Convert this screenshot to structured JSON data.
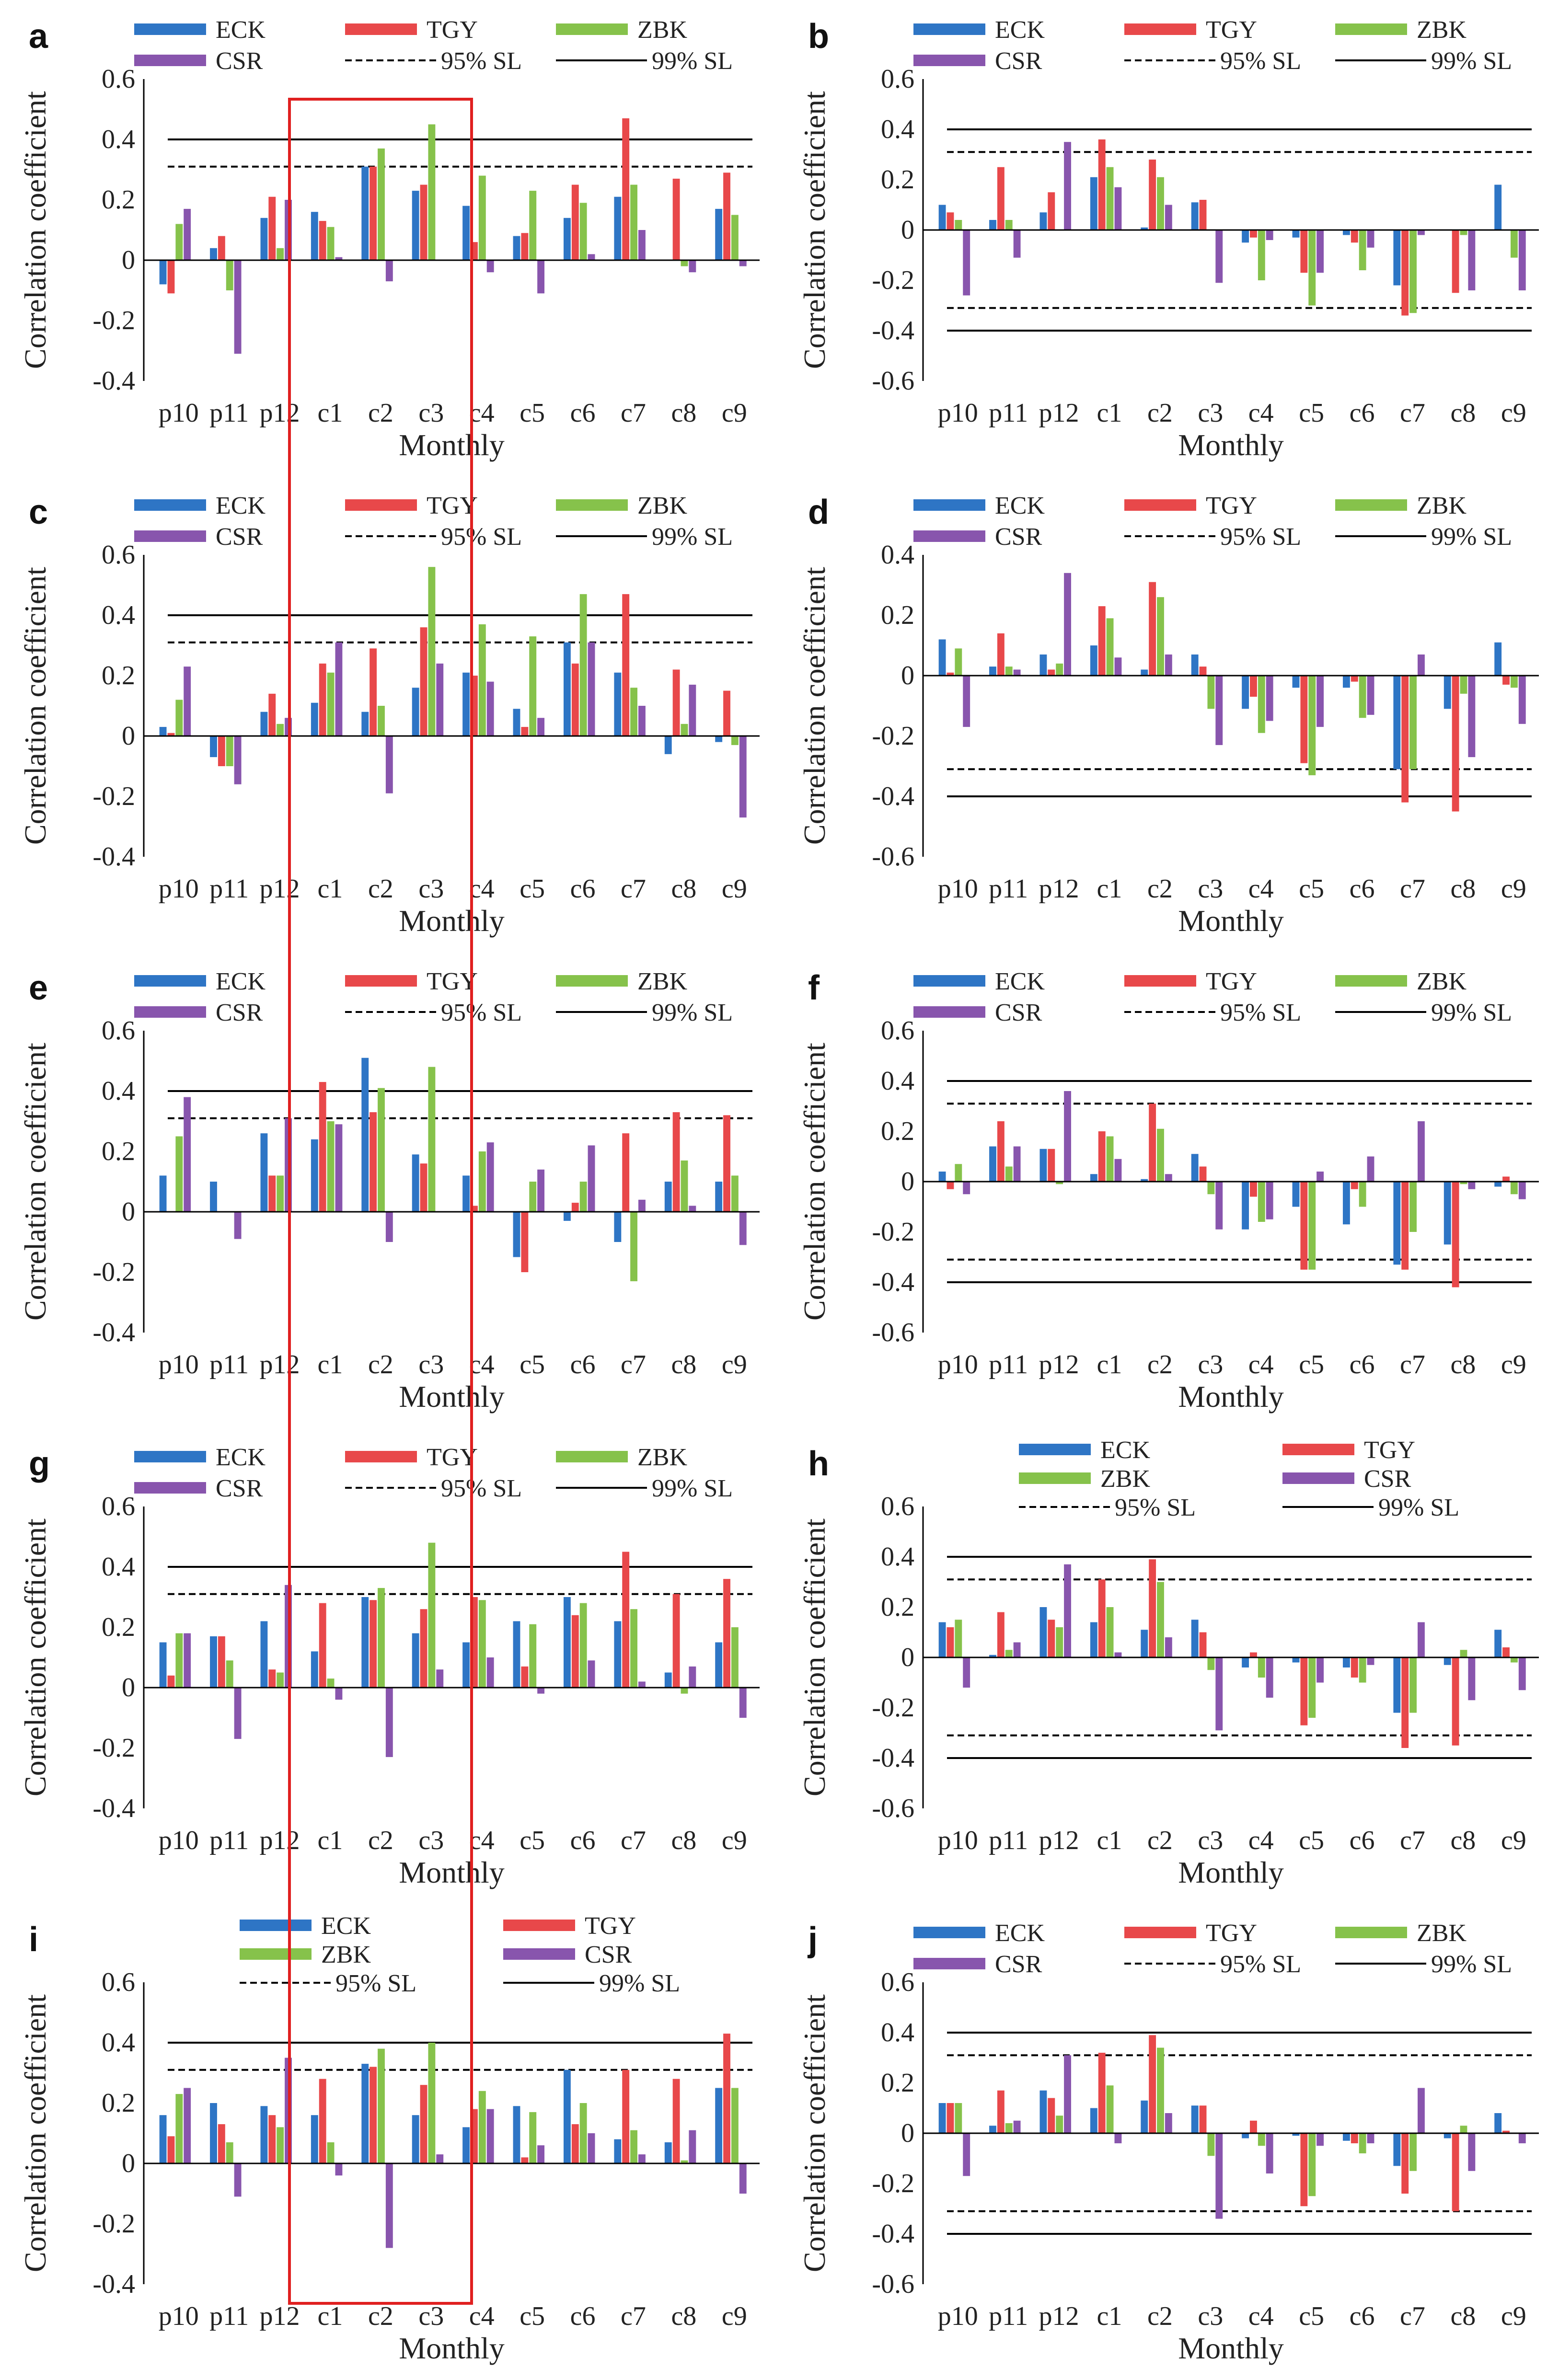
{
  "figure": {
    "colors": {
      "ECK": "#2e75c5",
      "TGY": "#e8484a",
      "ZBK": "#86c24b",
      "CSR": "#8855ad",
      "threshold": "#000000",
      "highlight": "#e02020"
    }
  },
  "chart_data": [
    {
      "panel": "a",
      "type": "bar",
      "ylabel": "Correlation coefficient",
      "xlabel": "Monthly",
      "categories": [
        "p10",
        "p11",
        "p12",
        "c1",
        "c2",
        "c3",
        "c4",
        "c5",
        "c6",
        "c7",
        "c8",
        "c9"
      ],
      "ylim": [
        -0.4,
        0.6
      ],
      "yticks": [
        -0.4,
        -0.2,
        0,
        0.2,
        0.4,
        0.6
      ],
      "legend": [
        "ECK",
        "TGY",
        "ZBK",
        "CSR",
        "95% SL",
        "99% SL"
      ],
      "legend_columns": 3,
      "thresholds": {
        "sl95": 0.31,
        "sl99": 0.4,
        "show_negative": false
      },
      "series": [
        {
          "name": "ECK",
          "values": [
            -0.08,
            0.04,
            0.14,
            0.16,
            0.31,
            0.23,
            0.18,
            0.08,
            0.14,
            0.21,
            0.0,
            0.17
          ]
        },
        {
          "name": "TGY",
          "values": [
            -0.11,
            0.08,
            0.21,
            0.13,
            0.31,
            0.25,
            0.06,
            0.09,
            0.25,
            0.47,
            0.27,
            0.29
          ]
        },
        {
          "name": "ZBK",
          "values": [
            0.12,
            -0.1,
            0.04,
            0.11,
            0.37,
            0.45,
            0.28,
            0.23,
            0.19,
            0.25,
            -0.02,
            0.15
          ]
        },
        {
          "name": "CSR",
          "values": [
            0.17,
            -0.31,
            0.2,
            0.01,
            -0.07,
            0.0,
            -0.04,
            -0.11,
            0.02,
            0.1,
            -0.04,
            -0.02
          ]
        }
      ]
    },
    {
      "panel": "b",
      "type": "bar",
      "ylabel": "Correlation coefficient",
      "xlabel": "Monthly",
      "categories": [
        "p10",
        "p11",
        "p12",
        "c1",
        "c2",
        "c3",
        "c4",
        "c5",
        "c6",
        "c7",
        "c8",
        "c9"
      ],
      "ylim": [
        -0.6,
        0.6
      ],
      "yticks": [
        -0.6,
        -0.4,
        -0.2,
        0,
        0.2,
        0.4,
        0.6
      ],
      "legend": [
        "ECK",
        "TGY",
        "ZBK",
        "CSR",
        "95% SL",
        "99% SL"
      ],
      "legend_columns": 3,
      "thresholds": {
        "sl95": 0.31,
        "sl99": 0.4,
        "show_negative": true
      },
      "series": [
        {
          "name": "ECK",
          "values": [
            0.1,
            0.04,
            0.07,
            0.21,
            0.01,
            0.11,
            -0.05,
            -0.03,
            -0.02,
            -0.22,
            0.0,
            0.18
          ]
        },
        {
          "name": "TGY",
          "values": [
            0.07,
            0.25,
            0.15,
            0.36,
            0.28,
            0.12,
            -0.03,
            -0.17,
            -0.05,
            -0.34,
            -0.25,
            0.0
          ]
        },
        {
          "name": "ZBK",
          "values": [
            0.04,
            0.04,
            0.0,
            0.25,
            0.21,
            0.0,
            -0.2,
            -0.3,
            -0.16,
            -0.33,
            -0.02,
            -0.11
          ]
        },
        {
          "name": "CSR",
          "values": [
            -0.26,
            -0.11,
            0.35,
            0.17,
            0.1,
            -0.21,
            -0.04,
            -0.17,
            -0.07,
            -0.02,
            -0.24,
            -0.24
          ]
        }
      ]
    },
    {
      "panel": "c",
      "type": "bar",
      "ylabel": "Correlation coefficient",
      "xlabel": "Monthly",
      "categories": [
        "p10",
        "p11",
        "p12",
        "c1",
        "c2",
        "c3",
        "c4",
        "c5",
        "c6",
        "c7",
        "c8",
        "c9"
      ],
      "ylim": [
        -0.4,
        0.6
      ],
      "yticks": [
        -0.4,
        -0.2,
        0,
        0.2,
        0.4,
        0.6
      ],
      "legend": [
        "ECK",
        "TGY",
        "ZBK",
        "CSR",
        "95% SL",
        "99% SL"
      ],
      "legend_columns": 3,
      "thresholds": {
        "sl95": 0.31,
        "sl99": 0.4,
        "show_negative": false
      },
      "series": [
        {
          "name": "ECK",
          "values": [
            0.03,
            -0.07,
            0.08,
            0.11,
            0.08,
            0.16,
            0.21,
            0.09,
            0.31,
            0.21,
            -0.06,
            -0.02
          ]
        },
        {
          "name": "TGY",
          "values": [
            0.01,
            -0.1,
            0.14,
            0.24,
            0.29,
            0.36,
            0.2,
            0.03,
            0.24,
            0.47,
            0.22,
            0.15
          ]
        },
        {
          "name": "ZBK",
          "values": [
            0.12,
            -0.1,
            0.04,
            0.21,
            0.1,
            0.56,
            0.37,
            0.33,
            0.47,
            0.16,
            0.04,
            -0.03
          ]
        },
        {
          "name": "CSR",
          "values": [
            0.23,
            -0.16,
            0.06,
            0.31,
            -0.19,
            0.24,
            0.18,
            0.06,
            0.31,
            0.1,
            0.17,
            -0.27
          ]
        }
      ]
    },
    {
      "panel": "d",
      "type": "bar",
      "ylabel": "Correlation coefficient",
      "xlabel": "Monthly",
      "categories": [
        "p10",
        "p11",
        "p12",
        "c1",
        "c2",
        "c3",
        "c4",
        "c5",
        "c6",
        "c7",
        "c8",
        "c9"
      ],
      "ylim": [
        -0.6,
        0.4
      ],
      "yticks": [
        -0.6,
        -0.4,
        -0.2,
        0,
        0.2,
        0.4
      ],
      "legend": [
        "ECK",
        "TGY",
        "ZBK",
        "CSR",
        "95% SL",
        "99% SL"
      ],
      "legend_columns": 3,
      "thresholds": {
        "sl95": 0.31,
        "sl99": 0.4,
        "show_negative": true,
        "show_positive": false
      },
      "series": [
        {
          "name": "ECK",
          "values": [
            0.12,
            0.03,
            0.07,
            0.1,
            0.02,
            0.07,
            -0.11,
            -0.04,
            -0.04,
            -0.31,
            -0.11,
            0.11
          ]
        },
        {
          "name": "TGY",
          "values": [
            0.01,
            0.14,
            0.02,
            0.23,
            0.31,
            0.03,
            -0.07,
            -0.29,
            -0.02,
            -0.42,
            -0.45,
            -0.03
          ]
        },
        {
          "name": "ZBK",
          "values": [
            0.09,
            0.03,
            0.04,
            0.19,
            0.26,
            -0.11,
            -0.19,
            -0.33,
            -0.14,
            -0.31,
            -0.06,
            -0.04
          ]
        },
        {
          "name": "CSR",
          "values": [
            -0.17,
            0.02,
            0.34,
            0.06,
            0.07,
            -0.23,
            -0.15,
            -0.17,
            -0.13,
            0.07,
            -0.27,
            -0.16
          ]
        }
      ]
    },
    {
      "panel": "e",
      "type": "bar",
      "ylabel": "Correlation coefficient",
      "xlabel": "Monthly",
      "categories": [
        "p10",
        "p11",
        "p12",
        "c1",
        "c2",
        "c3",
        "c4",
        "c5",
        "c6",
        "c7",
        "c8",
        "c9"
      ],
      "ylim": [
        -0.4,
        0.6
      ],
      "yticks": [
        -0.4,
        -0.2,
        0,
        0.2,
        0.4,
        0.6
      ],
      "legend": [
        "ECK",
        "TGY",
        "ZBK",
        "CSR",
        "95% SL",
        "99% SL"
      ],
      "legend_columns": 3,
      "thresholds": {
        "sl95": 0.31,
        "sl99": 0.4,
        "show_negative": false
      },
      "series": [
        {
          "name": "ECK",
          "values": [
            0.12,
            0.1,
            0.26,
            0.24,
            0.51,
            0.19,
            0.12,
            -0.15,
            -0.03,
            -0.1,
            0.1,
            0.1
          ]
        },
        {
          "name": "TGY",
          "values": [
            0.0,
            0.0,
            0.12,
            0.43,
            0.33,
            0.16,
            0.02,
            -0.2,
            0.03,
            0.26,
            0.33,
            0.32
          ]
        },
        {
          "name": "ZBK",
          "values": [
            0.25,
            0.0,
            0.12,
            0.3,
            0.41,
            0.48,
            0.2,
            0.1,
            0.1,
            -0.23,
            0.17,
            0.12
          ]
        },
        {
          "name": "CSR",
          "values": [
            0.38,
            -0.09,
            0.31,
            0.29,
            -0.1,
            0.0,
            0.23,
            0.14,
            0.22,
            0.04,
            0.02,
            -0.11
          ]
        }
      ]
    },
    {
      "panel": "f",
      "type": "bar",
      "ylabel": "Correlation coefficient",
      "xlabel": "Monthly",
      "categories": [
        "p10",
        "p11",
        "p12",
        "c1",
        "c2",
        "c3",
        "c4",
        "c5",
        "c6",
        "c7",
        "c8",
        "c9"
      ],
      "ylim": [
        -0.6,
        0.6
      ],
      "yticks": [
        -0.6,
        -0.4,
        -0.2,
        0,
        0.2,
        0.4,
        0.6
      ],
      "legend": [
        "ECK",
        "TGY",
        "ZBK",
        "CSR",
        "95% SL",
        "99% SL"
      ],
      "legend_columns": 3,
      "thresholds": {
        "sl95": 0.31,
        "sl99": 0.4,
        "show_negative": true
      },
      "series": [
        {
          "name": "ECK",
          "values": [
            0.04,
            0.14,
            0.13,
            0.03,
            0.01,
            0.11,
            -0.19,
            -0.1,
            -0.17,
            -0.33,
            -0.25,
            -0.02
          ]
        },
        {
          "name": "TGY",
          "values": [
            -0.03,
            0.24,
            0.13,
            0.2,
            0.31,
            0.06,
            -0.06,
            -0.35,
            -0.03,
            -0.35,
            -0.42,
            0.02
          ]
        },
        {
          "name": "ZBK",
          "values": [
            0.07,
            0.06,
            -0.01,
            0.18,
            0.21,
            -0.05,
            -0.16,
            -0.35,
            -0.1,
            -0.2,
            -0.01,
            -0.05
          ]
        },
        {
          "name": "CSR",
          "values": [
            -0.05,
            0.14,
            0.36,
            0.09,
            0.03,
            -0.19,
            -0.15,
            0.04,
            0.1,
            0.24,
            -0.03,
            -0.07
          ]
        }
      ]
    },
    {
      "panel": "g",
      "type": "bar",
      "ylabel": "Correlation coefficient",
      "xlabel": "Monthly",
      "categories": [
        "p10",
        "p11",
        "p12",
        "c1",
        "c2",
        "c3",
        "c4",
        "c5",
        "c6",
        "c7",
        "c8",
        "c9"
      ],
      "ylim": [
        -0.4,
        0.6
      ],
      "yticks": [
        -0.4,
        -0.2,
        0,
        0.2,
        0.4,
        0.6
      ],
      "legend": [
        "ECK",
        "TGY",
        "ZBK",
        "CSR",
        "95% SL",
        "99% SL"
      ],
      "legend_columns": 3,
      "thresholds": {
        "sl95": 0.31,
        "sl99": 0.4,
        "show_negative": false
      },
      "series": [
        {
          "name": "ECK",
          "values": [
            0.15,
            0.17,
            0.22,
            0.12,
            0.3,
            0.18,
            0.15,
            0.22,
            0.3,
            0.22,
            0.05,
            0.15
          ]
        },
        {
          "name": "TGY",
          "values": [
            0.04,
            0.17,
            0.06,
            0.28,
            0.29,
            0.26,
            0.3,
            0.07,
            0.24,
            0.45,
            0.31,
            0.36
          ]
        },
        {
          "name": "ZBK",
          "values": [
            0.18,
            0.09,
            0.05,
            0.03,
            0.33,
            0.48,
            0.29,
            0.21,
            0.28,
            0.26,
            -0.02,
            0.2
          ]
        },
        {
          "name": "CSR",
          "values": [
            0.18,
            -0.17,
            0.34,
            -0.04,
            -0.23,
            0.06,
            0.1,
            -0.02,
            0.09,
            0.02,
            0.07,
            -0.1
          ]
        }
      ]
    },
    {
      "panel": "h",
      "type": "bar",
      "ylabel": "Correlation coefficient",
      "xlabel": "Monthly",
      "categories": [
        "p10",
        "p11",
        "p12",
        "c1",
        "c2",
        "c3",
        "c4",
        "c5",
        "c6",
        "c7",
        "c8",
        "c9"
      ],
      "ylim": [
        -0.6,
        0.6
      ],
      "yticks": [
        -0.6,
        -0.4,
        -0.2,
        0,
        0.2,
        0.4,
        0.6
      ],
      "legend": [
        "ECK",
        "TGY",
        "ZBK",
        "CSR",
        "95% SL",
        "99% SL"
      ],
      "legend_columns": 2,
      "thresholds": {
        "sl95": 0.31,
        "sl99": 0.4,
        "show_negative": true
      },
      "series": [
        {
          "name": "ECK",
          "values": [
            0.14,
            0.01,
            0.2,
            0.14,
            0.11,
            0.15,
            -0.04,
            -0.02,
            -0.04,
            -0.22,
            -0.03,
            0.11
          ]
        },
        {
          "name": "TGY",
          "values": [
            0.12,
            0.18,
            0.15,
            0.31,
            0.39,
            0.1,
            0.02,
            -0.27,
            -0.08,
            -0.36,
            -0.35,
            0.04
          ]
        },
        {
          "name": "ZBK",
          "values": [
            0.15,
            0.03,
            0.12,
            0.2,
            0.3,
            -0.05,
            -0.08,
            -0.24,
            -0.1,
            -0.22,
            0.03,
            -0.02
          ]
        },
        {
          "name": "CSR",
          "values": [
            -0.12,
            0.06,
            0.37,
            0.02,
            0.08,
            -0.29,
            -0.16,
            -0.1,
            -0.03,
            0.14,
            -0.17,
            -0.13
          ]
        }
      ]
    },
    {
      "panel": "i",
      "type": "bar",
      "ylabel": "Correlation coefficient",
      "xlabel": "Monthly",
      "categories": [
        "p10",
        "p11",
        "p12",
        "c1",
        "c2",
        "c3",
        "c4",
        "c5",
        "c6",
        "c7",
        "c8",
        "c9"
      ],
      "ylim": [
        -0.4,
        0.6
      ],
      "yticks": [
        -0.4,
        -0.2,
        0,
        0.2,
        0.4,
        0.6
      ],
      "legend": [
        "ECK",
        "TGY",
        "ZBK",
        "CSR",
        "95% SL",
        "99% SL"
      ],
      "legend_columns": 2,
      "thresholds": {
        "sl95": 0.31,
        "sl99": 0.4,
        "show_negative": false
      },
      "series": [
        {
          "name": "ECK",
          "values": [
            0.16,
            0.2,
            0.19,
            0.16,
            0.33,
            0.16,
            0.12,
            0.19,
            0.31,
            0.08,
            0.07,
            0.25
          ]
        },
        {
          "name": "TGY",
          "values": [
            0.09,
            0.13,
            0.16,
            0.28,
            0.32,
            0.26,
            0.18,
            0.02,
            0.13,
            0.31,
            0.28,
            0.43
          ]
        },
        {
          "name": "ZBK",
          "values": [
            0.23,
            0.07,
            0.12,
            0.07,
            0.38,
            0.4,
            0.24,
            0.17,
            0.2,
            0.11,
            0.01,
            0.25
          ]
        },
        {
          "name": "CSR",
          "values": [
            0.25,
            -0.11,
            0.35,
            -0.04,
            -0.28,
            0.03,
            0.18,
            0.06,
            0.1,
            0.03,
            0.11,
            -0.1
          ]
        }
      ]
    },
    {
      "panel": "j",
      "type": "bar",
      "ylabel": "Correlation coefficient",
      "xlabel": "Monthly",
      "categories": [
        "p10",
        "p11",
        "p12",
        "c1",
        "c2",
        "c3",
        "c4",
        "c5",
        "c6",
        "c7",
        "c8",
        "c9"
      ],
      "ylim": [
        -0.6,
        0.6
      ],
      "yticks": [
        -0.6,
        -0.4,
        -0.2,
        0,
        0.2,
        0.4,
        0.6
      ],
      "legend": [
        "ECK",
        "TGY",
        "ZBK",
        "CSR",
        "95% SL",
        "99% SL"
      ],
      "legend_columns": 3,
      "thresholds": {
        "sl95": 0.31,
        "sl99": 0.4,
        "show_negative": true
      },
      "series": [
        {
          "name": "ECK",
          "values": [
            0.12,
            0.03,
            0.17,
            0.1,
            0.13,
            0.11,
            -0.02,
            -0.01,
            -0.03,
            -0.13,
            -0.02,
            0.08
          ]
        },
        {
          "name": "TGY",
          "values": [
            0.12,
            0.17,
            0.14,
            0.32,
            0.39,
            0.11,
            0.05,
            -0.29,
            -0.04,
            -0.24,
            -0.31,
            0.01
          ]
        },
        {
          "name": "ZBK",
          "values": [
            0.12,
            0.04,
            0.07,
            0.19,
            0.34,
            -0.09,
            -0.05,
            -0.25,
            -0.08,
            -0.15,
            0.03,
            0.0
          ]
        },
        {
          "name": "CSR",
          "values": [
            -0.17,
            0.05,
            0.31,
            -0.04,
            0.08,
            -0.34,
            -0.16,
            -0.05,
            -0.04,
            0.18,
            -0.15,
            -0.04
          ]
        }
      ]
    }
  ]
}
